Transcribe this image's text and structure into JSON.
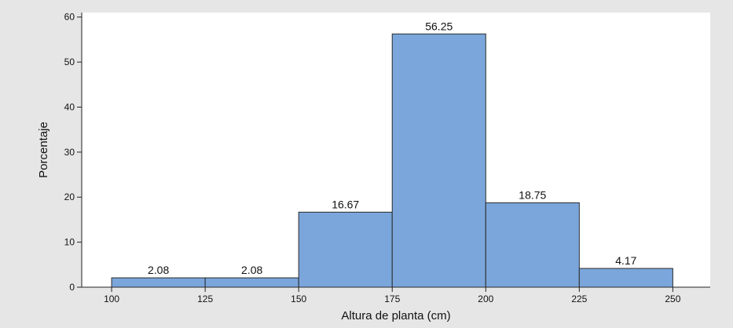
{
  "chart_data": {
    "type": "bar",
    "subtype": "histogram",
    "bin_edges": [
      100,
      125,
      150,
      175,
      200,
      225,
      250
    ],
    "values": [
      2.08,
      2.08,
      16.67,
      56.25,
      18.75,
      4.17
    ],
    "data_labels": [
      "2.08",
      "2.08",
      "16.67",
      "56.25",
      "18.75",
      "4.17"
    ],
    "xlabel": "Altura de planta (cm)",
    "ylabel": "Porcentaje",
    "xlim": [
      92,
      260
    ],
    "ylim": [
      0,
      61
    ],
    "x_ticks": [
      100,
      125,
      150,
      175,
      200,
      225,
      250
    ],
    "y_ticks": [
      0,
      10,
      20,
      30,
      40,
      50,
      60
    ],
    "grid": false,
    "legend": "none",
    "colors": {
      "bar_fill": "#7aa6db",
      "bar_edge": "#2b2b2b",
      "plot_bg": "#ffffff",
      "outer_bg": "#e6e6e6"
    }
  }
}
